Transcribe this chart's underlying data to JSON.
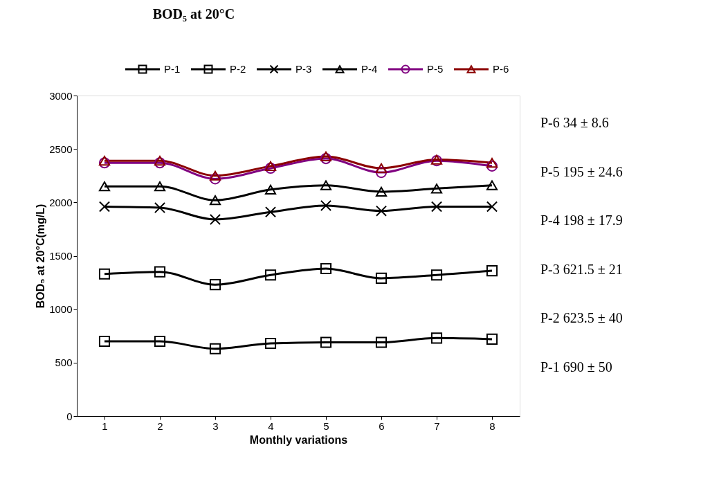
{
  "chart_data": {
    "type": "line",
    "title": "BOD₅ at 20°C",
    "xlabel": "Monthly variations",
    "ylabel": "BOD₅ at 20°C(mg/L)",
    "categories": [
      "1",
      "2",
      "3",
      "4",
      "5",
      "6",
      "7",
      "8"
    ],
    "series": [
      {
        "name": "P-1",
        "color": "#000000",
        "marker": "square",
        "values": [
          700,
          700,
          630,
          680,
          690,
          690,
          730,
          720
        ]
      },
      {
        "name": "P-2",
        "color": "#000000",
        "marker": "square",
        "values": [
          1330,
          1350,
          1230,
          1320,
          1380,
          1290,
          1320,
          1360
        ]
      },
      {
        "name": "P-3",
        "color": "#000000",
        "marker": "cross",
        "values": [
          1960,
          1950,
          1840,
          1910,
          1970,
          1920,
          1960,
          1960
        ]
      },
      {
        "name": "P-4",
        "color": "#000000",
        "marker": "triangle",
        "values": [
          2150,
          2150,
          2020,
          2120,
          2160,
          2100,
          2130,
          2160
        ]
      },
      {
        "name": "P-5",
        "color": "#800080",
        "marker": "circle",
        "values": [
          2370,
          2370,
          2220,
          2320,
          2410,
          2280,
          2390,
          2340
        ]
      },
      {
        "name": "P-6",
        "color": "#8b0000",
        "marker": "triangle",
        "values": [
          2390,
          2390,
          2250,
          2340,
          2430,
          2320,
          2400,
          2370
        ]
      }
    ],
    "ylim": [
      0,
      3000
    ],
    "yticks": [
      0,
      500,
      1000,
      1500,
      2000,
      2500,
      3000
    ],
    "grid": false,
    "legend": "top",
    "annotations": [
      "P-6   34 ± 8.6",
      "P-5 195 ± 24.6",
      "P-4   198 ± 17.9",
      "P-3 621.5 ± 21",
      "P-2   623.5 ± 40",
      "P-1   690 ± 50"
    ]
  }
}
